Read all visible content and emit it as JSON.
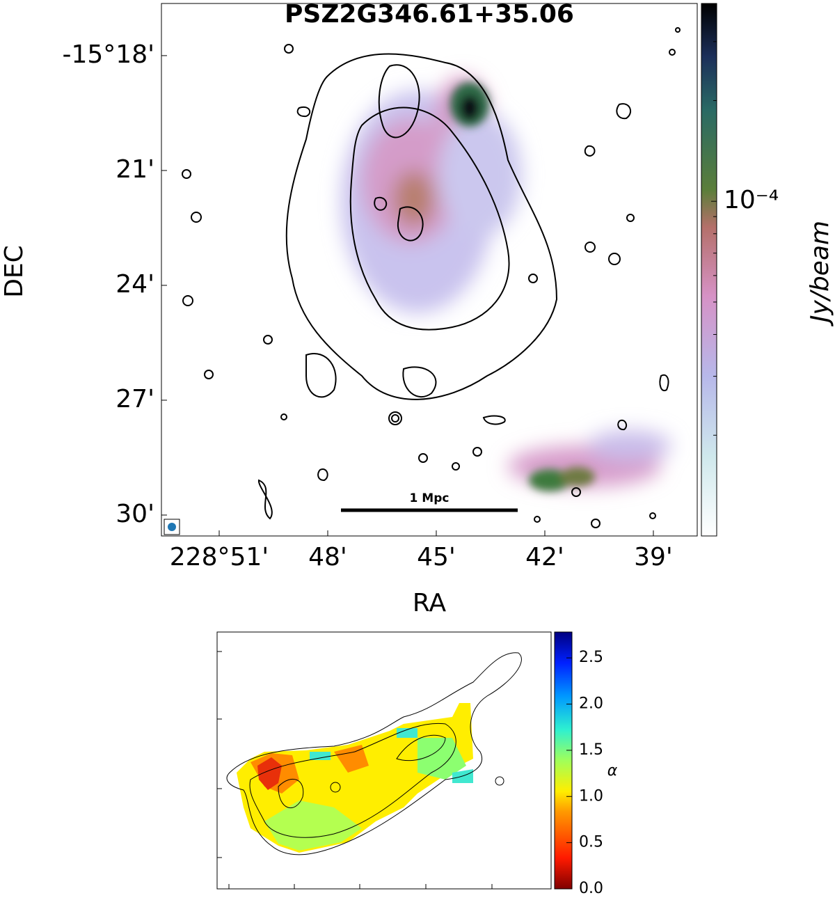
{
  "chart_data": [
    {
      "type": "image",
      "title": "PSZ2G346.61+35.06",
      "xlabel": "RA",
      "ylabel": "DEC",
      "xlim": [
        228.8766,
        228.6298
      ],
      "ylim": [
        -15.5091,
        -15.2773
      ],
      "xticks": [
        {
          "value": 228.85,
          "label": "228°51'"
        },
        {
          "value": 228.8,
          "label": "48'"
        },
        {
          "value": 228.75,
          "label": "45'"
        },
        {
          "value": 228.7,
          "label": "42'"
        },
        {
          "value": 228.65,
          "label": "39'"
        }
      ],
      "yticks": [
        {
          "value": -15.3,
          "label": "-15°18'"
        },
        {
          "value": -15.35,
          "label": "21'"
        },
        {
          "value": -15.4,
          "label": "24'"
        },
        {
          "value": -15.45,
          "label": "27'"
        },
        {
          "value": -15.5,
          "label": "30'"
        }
      ],
      "annotation": "1 Mpc",
      "colorbar": {
        "label": "Jy/beam",
        "log": true,
        "lim": [
          1e-05,
          0.00039
        ],
        "ticks": [
          {
            "value": 0.0001,
            "label": "10⁻⁴"
          }
        ]
      }
    },
    {
      "type": "image",
      "colorbar": {
        "label": "α",
        "log": false,
        "lim": [
          0,
          2.78
        ],
        "ticks": [
          {
            "value": 0,
            "label": "0.0"
          },
          0.5,
          {
            "value": 1,
            "label": "1.0"
          },
          1.5,
          {
            "value": 2,
            "label": "2.0"
          },
          2.5
        ]
      }
    }
  ]
}
